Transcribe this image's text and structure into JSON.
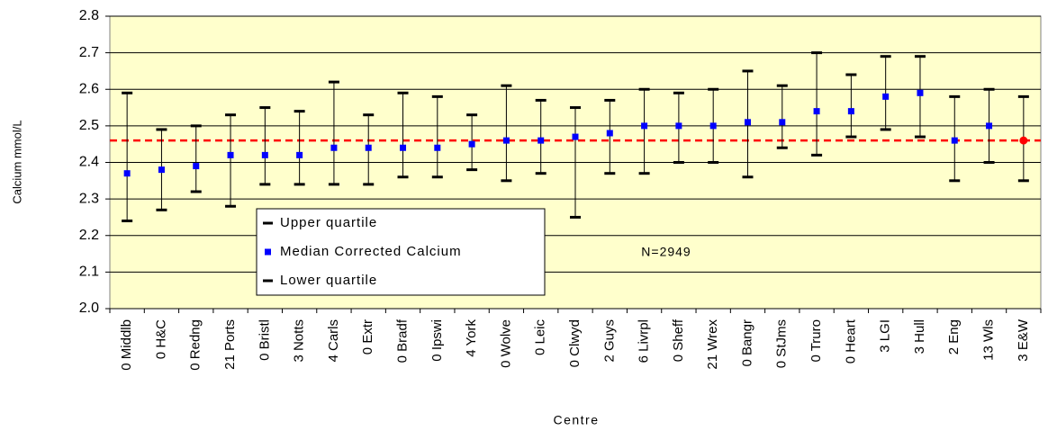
{
  "chart_data": {
    "type": "quartile_errorbar",
    "x_label": "Centre",
    "y_label": "Calcium mmol/L",
    "annotation": "N=2949",
    "categories": [
      "0 Middlb",
      "0 H&C",
      "0 Redng",
      "21 Ports",
      "0 Bristl",
      "3 Notts",
      "4 Carls",
      "0 Extr",
      "0 Bradf",
      "0 Ipswi",
      "4 York",
      "0 Wolve",
      "0 Leic",
      "0 Clwyd",
      "2 Guys",
      "6 Livrpl",
      "0 Sheff",
      "21 Wrex",
      "0 Bangr",
      "0 StJms",
      "0 Truro",
      "0 Heart",
      "3 LGI",
      "3 Hull",
      "2 Eng",
      "13 Wls",
      "3 E&W"
    ],
    "series": [
      {
        "name": "Upper quartile",
        "color": "#000000",
        "values": [
          2.59,
          2.49,
          2.5,
          2.53,
          2.55,
          2.54,
          2.62,
          2.53,
          2.59,
          2.58,
          2.53,
          2.61,
          2.57,
          2.55,
          2.57,
          2.6,
          2.59,
          2.6,
          2.65,
          2.61,
          2.7,
          2.64,
          2.69,
          2.69,
          2.58,
          2.6,
          2.58
        ]
      },
      {
        "name": "Median Corrected Calcium",
        "color": "#0000ff",
        "values": [
          2.37,
          2.38,
          2.39,
          2.42,
          2.42,
          2.42,
          2.44,
          2.44,
          2.44,
          2.44,
          2.45,
          2.46,
          2.46,
          2.47,
          2.48,
          2.5,
          2.5,
          2.5,
          2.51,
          2.51,
          2.54,
          2.54,
          2.58,
          2.59,
          2.46,
          2.5,
          2.46
        ],
        "colors": [
          "#0000ff",
          "#0000ff",
          "#0000ff",
          "#0000ff",
          "#0000ff",
          "#0000ff",
          "#0000ff",
          "#0000ff",
          "#0000ff",
          "#0000ff",
          "#0000ff",
          "#0000ff",
          "#0000ff",
          "#0000ff",
          "#0000ff",
          "#0000ff",
          "#0000ff",
          "#0000ff",
          "#0000ff",
          "#0000ff",
          "#0000ff",
          "#0000ff",
          "#0000ff",
          "#0000ff",
          "#0000ff",
          "#0000ff",
          "#ff0000"
        ],
        "markers": [
          "square",
          "square",
          "square",
          "square",
          "square",
          "square",
          "square",
          "square",
          "square",
          "square",
          "square",
          "square",
          "square",
          "square",
          "square",
          "square",
          "square",
          "square",
          "square",
          "square",
          "square",
          "square",
          "square",
          "square",
          "square",
          "square",
          "circle"
        ]
      },
      {
        "name": "Lower quartile",
        "color": "#000000",
        "values": [
          2.24,
          2.27,
          2.32,
          2.28,
          2.34,
          2.34,
          2.34,
          2.34,
          2.36,
          2.36,
          2.38,
          2.35,
          2.37,
          2.25,
          2.37,
          2.37,
          2.4,
          2.4,
          2.36,
          2.44,
          2.42,
          2.47,
          2.49,
          2.47,
          2.35,
          2.4,
          2.35
        ]
      }
    ],
    "reference_line": {
      "value": 2.46,
      "color": "#ff0000",
      "style": "dashed"
    },
    "ylim": [
      2.0,
      2.8
    ],
    "yticks": [
      {
        "value": 2,
        "label": "2.0"
      },
      2.1,
      2.2,
      2.3,
      2.4,
      2.5,
      2.6,
      2.7,
      2.8
    ],
    "grid": true,
    "plot_background": "#ffffcc",
    "legend_position": "lower-left"
  }
}
